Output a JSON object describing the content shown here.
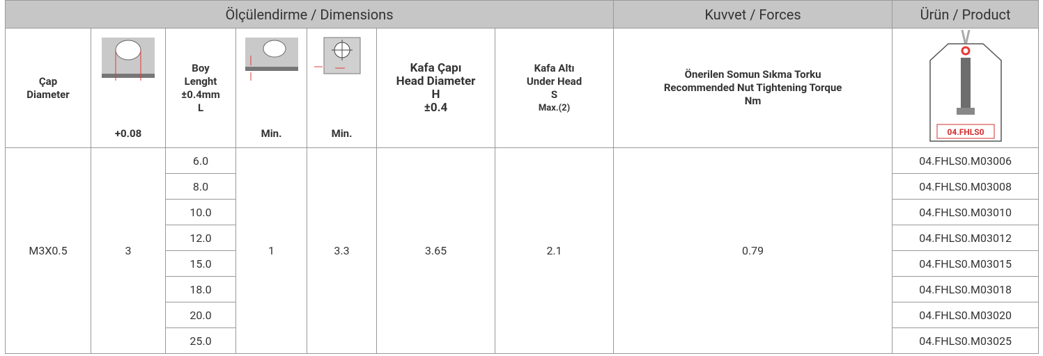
{
  "header": {
    "groups": [
      "Ölçülendirme / Dimensions",
      "Kuvvet / Forces",
      "Ürün / Product"
    ],
    "columns": {
      "diameter": [
        "Çap",
        "Diameter"
      ],
      "hole": [
        "+0.08"
      ],
      "length": [
        "Boy",
        "Lenght",
        "±0.4mm",
        "L"
      ],
      "min1": [
        "Min."
      ],
      "min2": [
        "Min."
      ],
      "head": [
        "Kafa Çapı",
        "Head Diameter",
        "H",
        "±0.4"
      ],
      "under": [
        "Kafa Altı",
        "Under Head",
        "S",
        "Max.(2)"
      ],
      "torque": [
        "Önerilen Somun Sıkma Torku",
        "Recommended Nut Tightening Torque",
        "Nm"
      ],
      "product_label": "04.FHLS0"
    }
  },
  "table": {
    "diameter": "M3X0.5",
    "hole": "3",
    "lengths": [
      "6.0",
      "8.0",
      "10.0",
      "12.0",
      "15.0",
      "18.0",
      "20.0",
      "25.0"
    ],
    "min1": "1",
    "min2": "3.3",
    "head": "3.65",
    "under": "2.1",
    "torque": "0.79",
    "products": [
      "04.FHLS0.M03006",
      "04.FHLS0.M03008",
      "04.FHLS0.M03010",
      "04.FHLS0.M03012",
      "04.FHLS0.M03015",
      "04.FHLS0.M03018",
      "04.FHLS0.M03020",
      "04.FHLS0.M03025"
    ]
  }
}
